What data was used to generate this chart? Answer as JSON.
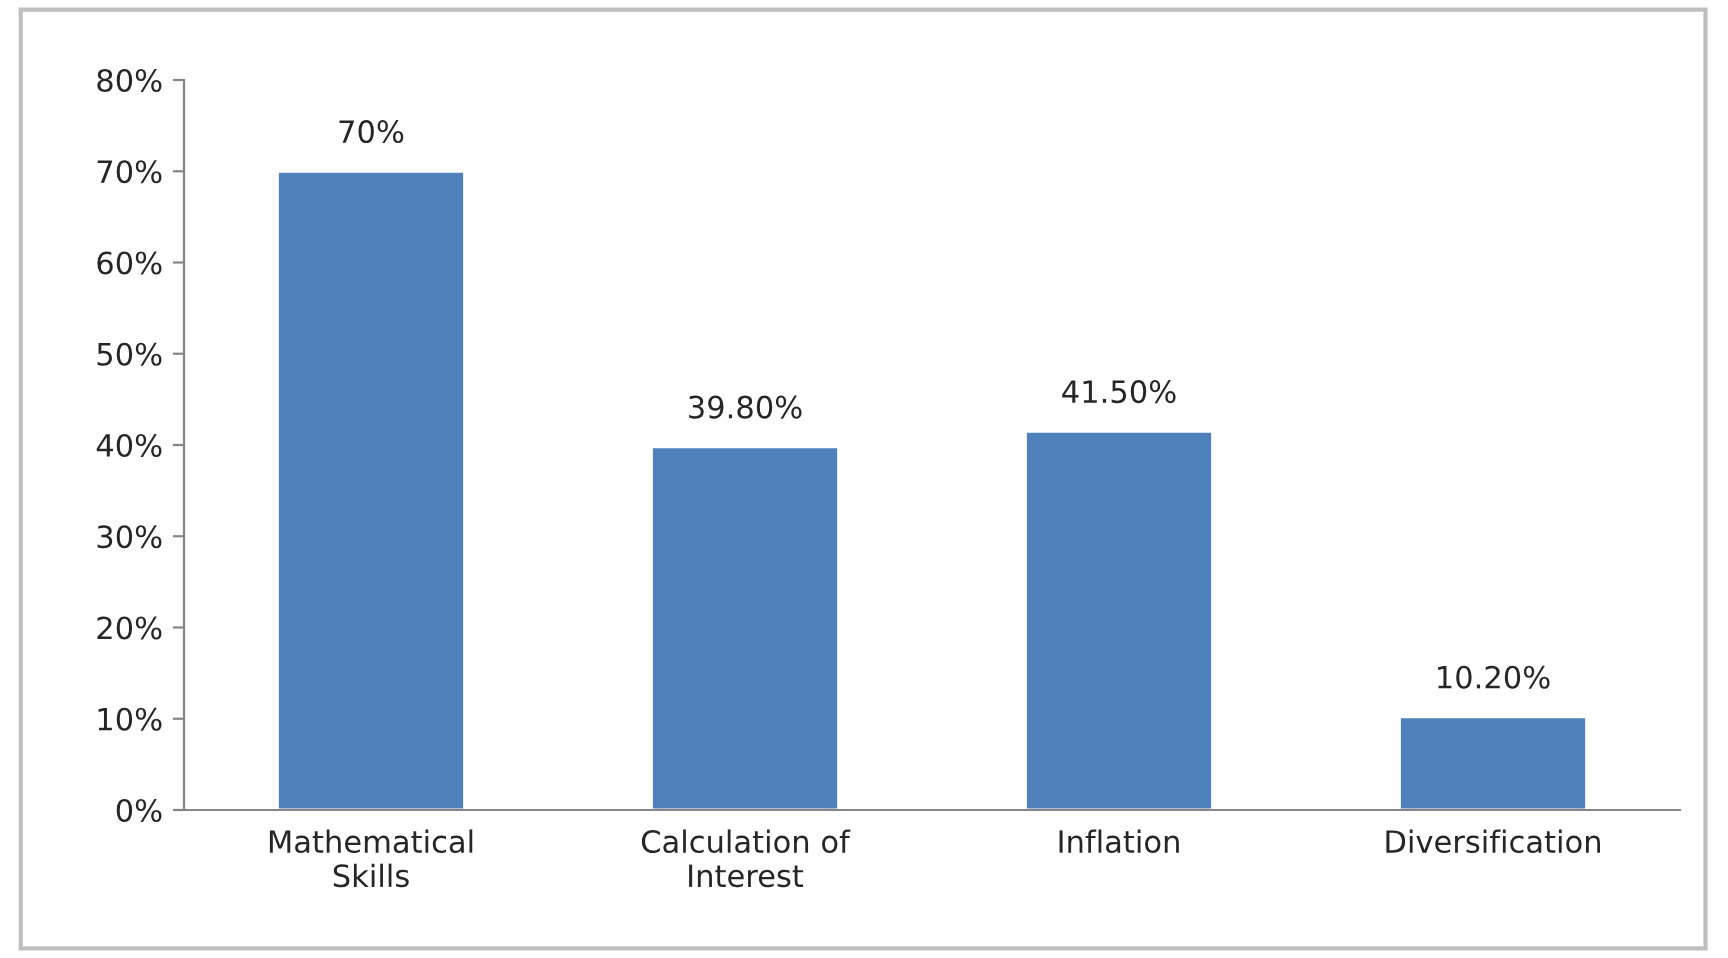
{
  "chart_data": {
    "type": "bar",
    "categories": [
      "Mathematical\nSkills",
      "Calculation of\nInterest",
      "Inflation",
      "Diversification"
    ],
    "values": [
      70,
      39.8,
      41.5,
      10.2
    ],
    "value_labels": [
      "70%",
      "39.80%",
      "41.50%",
      "10.20%"
    ],
    "color": "#4f81bd",
    "ylim": [
      0,
      80
    ],
    "yticks": [
      {
        "value": 0,
        "label": "0%"
      },
      {
        "value": 10,
        "label": "10%"
      },
      {
        "value": 20,
        "label": "20%"
      },
      {
        "value": 30,
        "label": "30%"
      },
      {
        "value": 40,
        "label": "40%"
      },
      {
        "value": 50,
        "label": "50%"
      },
      {
        "value": 60,
        "label": "60%"
      },
      {
        "value": 70,
        "label": "70%"
      },
      {
        "value": 80,
        "label": "80%"
      }
    ],
    "grid": false,
    "legend": false
  }
}
